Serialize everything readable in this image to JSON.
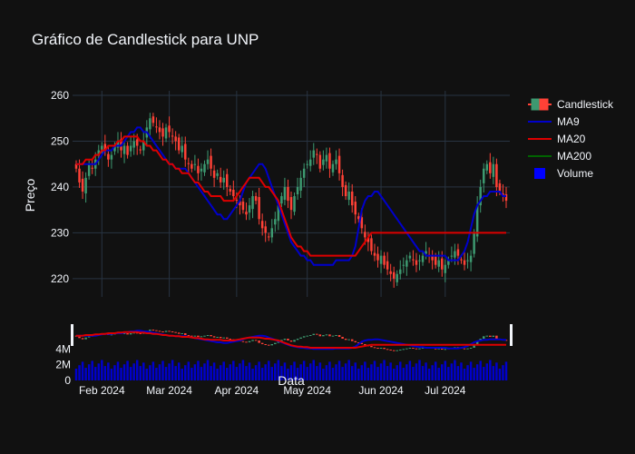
{
  "chart_data": {
    "type": "candlestick",
    "title": "Gráfico de Candlestick para UNP",
    "xlabel": "Data",
    "ylabel": "Preço",
    "x_ticks": [
      "Feb 2024",
      "Mar 2024",
      "Apr 2024",
      "May 2024",
      "Jun 2024",
      "Jul 2024"
    ],
    "y_ticks": [
      220,
      230,
      240,
      250,
      260
    ],
    "ylim": [
      216,
      261
    ],
    "volume_ticks": [
      "0",
      "2M",
      "4M"
    ],
    "volume_ylim": [
      0,
      4500000
    ],
    "grid": true,
    "legend_position": "top-right",
    "legend": [
      {
        "name": "Candlestick",
        "type": "candle"
      },
      {
        "name": "MA9",
        "type": "line",
        "color": "#0000cc"
      },
      {
        "name": "MA20",
        "type": "line",
        "color": "#dd0000"
      },
      {
        "name": "MA200",
        "type": "line",
        "color": "#006400"
      },
      {
        "name": "Volume",
        "type": "box",
        "color": "#0000ff"
      }
    ],
    "colors": {
      "up": "#3d9970",
      "down": "#ff4136",
      "ma9": "#0000cc",
      "ma20": "#dd0000",
      "volume": "#0000cc"
    },
    "date_start": "2024-01-22",
    "trading_days": [
      "2024-01-22",
      "2024-01-23",
      "2024-01-24",
      "2024-01-25",
      "2024-01-26",
      "2024-01-29",
      "2024-01-30",
      "2024-01-31",
      "2024-02-01",
      "2024-02-02",
      "2024-02-05",
      "2024-02-06",
      "2024-02-07",
      "2024-02-08",
      "2024-02-09",
      "2024-02-12",
      "2024-02-13",
      "2024-02-14",
      "2024-02-15",
      "2024-02-16",
      "2024-02-19",
      "2024-02-20",
      "2024-02-21",
      "2024-02-22",
      "2024-02-23",
      "2024-02-26",
      "2024-02-27",
      "2024-02-28",
      "2024-02-29",
      "2024-03-01",
      "2024-03-04",
      "2024-03-05",
      "2024-03-06",
      "2024-03-07",
      "2024-03-08",
      "2024-03-11",
      "2024-03-12",
      "2024-03-13",
      "2024-03-14",
      "2024-03-15",
      "2024-03-18",
      "2024-03-19",
      "2024-03-20",
      "2024-03-21",
      "2024-03-22",
      "2024-03-25",
      "2024-03-26",
      "2024-03-27",
      "2024-03-28",
      "2024-03-29",
      "2024-04-01",
      "2024-04-02",
      "2024-04-03",
      "2024-04-04",
      "2024-04-05",
      "2024-04-08",
      "2024-04-09",
      "2024-04-10",
      "2024-04-11",
      "2024-04-12",
      "2024-04-15",
      "2024-04-16",
      "2024-04-17",
      "2024-04-18",
      "2024-04-19",
      "2024-04-22",
      "2024-04-23",
      "2024-04-24",
      "2024-04-25",
      "2024-04-26",
      "2024-04-29",
      "2024-04-30",
      "2024-05-01",
      "2024-05-02",
      "2024-05-03",
      "2024-05-06",
      "2024-05-07",
      "2024-05-08",
      "2024-05-09",
      "2024-05-10",
      "2024-05-13",
      "2024-05-14",
      "2024-05-15",
      "2024-05-16",
      "2024-05-17",
      "2024-05-20",
      "2024-05-21",
      "2024-05-22",
      "2024-05-23",
      "2024-05-24",
      "2024-05-27",
      "2024-05-28",
      "2024-05-29",
      "2024-05-30",
      "2024-05-31",
      "2024-06-03",
      "2024-06-04",
      "2024-06-05",
      "2024-06-06",
      "2024-06-07",
      "2024-06-10",
      "2024-06-11",
      "2024-06-12",
      "2024-06-13",
      "2024-06-14",
      "2024-06-17",
      "2024-06-18",
      "2024-06-19",
      "2024-06-20",
      "2024-06-21",
      "2024-06-24",
      "2024-06-25",
      "2024-06-26",
      "2024-06-27",
      "2024-06-28",
      "2024-07-01",
      "2024-07-02",
      "2024-07-03",
      "2024-07-04",
      "2024-07-05",
      "2024-07-08",
      "2024-07-09",
      "2024-07-10",
      "2024-07-11",
      "2024-07-12",
      "2024-07-15",
      "2024-07-16",
      "2024-07-17",
      "2024-07-18",
      "2024-07-19",
      "2024-07-22",
      "2024-07-23",
      "2024-07-24",
      "2024-07-25",
      "2024-07-26"
    ],
    "close": [
      244,
      241,
      239,
      242,
      245,
      244,
      246,
      248,
      249,
      248,
      246,
      247,
      249,
      250,
      248,
      249,
      247,
      249,
      250,
      249,
      248,
      250,
      253,
      255,
      254,
      253,
      252,
      251,
      253,
      252,
      251,
      250,
      248,
      249,
      246,
      245,
      244,
      245,
      243,
      244,
      245,
      246,
      244,
      242,
      243,
      241,
      242,
      240,
      239,
      238,
      237,
      236,
      235,
      234,
      236,
      238,
      237,
      233,
      231,
      230,
      229,
      231,
      233,
      236,
      238,
      240,
      237,
      235,
      238,
      240,
      242,
      244,
      245,
      246,
      248,
      247,
      244,
      246,
      247,
      244,
      245,
      246,
      243,
      240,
      238,
      239,
      236,
      234,
      233,
      231,
      229,
      228,
      226,
      225,
      224,
      225,
      223,
      222,
      221,
      220,
      221,
      222,
      223,
      224,
      225,
      224,
      223,
      224,
      225,
      226,
      225,
      224,
      223,
      224,
      222,
      223,
      224,
      225,
      226,
      225,
      224,
      223,
      224,
      225,
      230,
      236,
      240,
      244,
      245,
      243,
      245,
      240,
      239,
      238,
      237
    ],
    "ma9": [
      245,
      245,
      245,
      245,
      245,
      245,
      245,
      246,
      247,
      248,
      248,
      248,
      249,
      249,
      249,
      250,
      251,
      252,
      252,
      253,
      253,
      252,
      252,
      251,
      250,
      249,
      248,
      247,
      246,
      245,
      245,
      244,
      244,
      244,
      244,
      243,
      242,
      241,
      240,
      239,
      238,
      237,
      236,
      235,
      234,
      234,
      233,
      233,
      234,
      235,
      236,
      237,
      239,
      241,
      242,
      243,
      244,
      245,
      245,
      244,
      242,
      240,
      238,
      236,
      234,
      232,
      230,
      228,
      227,
      226,
      225,
      225,
      224,
      224,
      223,
      223,
      223,
      223,
      223,
      223,
      223,
      224,
      224,
      224,
      224,
      224,
      225,
      227,
      231,
      235,
      237,
      238,
      238,
      239,
      239,
      238,
      237,
      236,
      235,
      234,
      233,
      232,
      231,
      230,
      229,
      228,
      227,
      226,
      226,
      225,
      225,
      225,
      225,
      225,
      225,
      225,
      224,
      224,
      224,
      224,
      225,
      226,
      228,
      231,
      234,
      236,
      237,
      238,
      238,
      239,
      239,
      239,
      239,
      238,
      238
    ],
    "ma20": [
      245,
      245,
      245,
      246,
      246,
      246,
      247,
      247,
      248,
      248,
      249,
      249,
      249,
      250,
      250,
      251,
      251,
      251,
      251,
      251,
      250,
      250,
      249,
      249,
      248,
      248,
      247,
      246,
      246,
      245,
      245,
      244,
      244,
      243,
      243,
      243,
      242,
      241,
      241,
      240,
      239,
      239,
      238,
      238,
      238,
      238,
      237,
      237,
      237,
      237,
      238,
      239,
      240,
      241,
      242,
      242,
      242,
      242,
      241,
      240,
      240,
      239,
      238,
      237,
      235,
      233,
      231,
      229,
      228,
      227,
      227,
      226,
      226,
      225,
      225,
      225,
      225,
      225,
      225,
      225,
      225,
      225,
      225,
      225,
      225,
      225,
      225,
      225,
      226,
      227,
      228,
      229,
      230,
      230,
      230,
      230,
      230,
      230,
      230,
      230,
      230,
      230,
      230,
      230,
      230,
      230,
      230,
      230,
      230,
      230,
      230,
      230,
      230,
      230,
      230,
      230,
      230,
      230,
      230,
      230,
      230,
      230,
      230,
      230,
      230,
      230,
      230,
      230,
      230,
      230,
      230,
      230,
      230,
      230,
      230
    ],
    "volume_note": ""
  }
}
